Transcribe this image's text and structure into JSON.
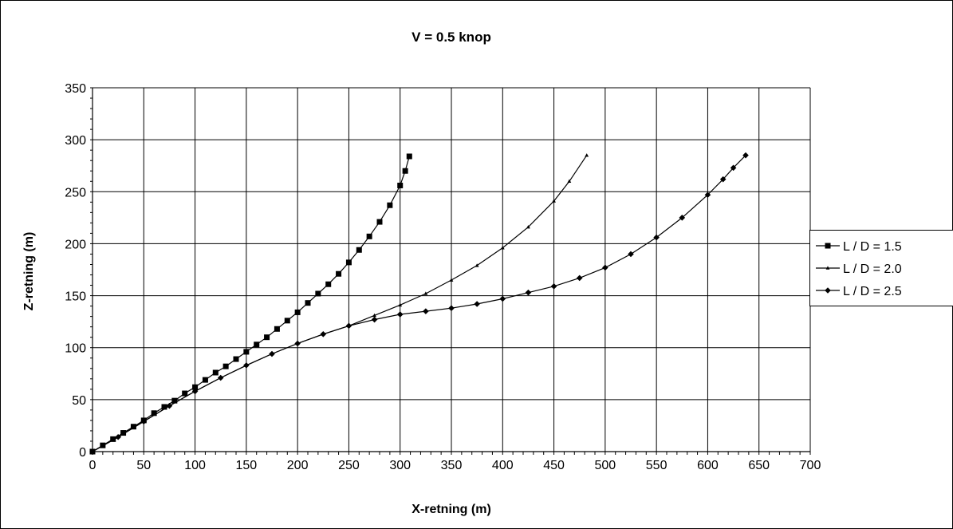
{
  "chart_data": {
    "type": "line",
    "title": "V = 0.5 knop",
    "xlabel": "X-retning (m)",
    "ylabel": "Z-retning (m)",
    "xlim": [
      0,
      700
    ],
    "ylim": [
      0,
      350
    ],
    "x_ticks": [
      0,
      50,
      100,
      150,
      200,
      250,
      300,
      350,
      400,
      450,
      500,
      550,
      600,
      650,
      700
    ],
    "y_ticks": [
      0,
      50,
      100,
      150,
      200,
      250,
      300,
      350
    ],
    "grid": true,
    "legend_position": "right",
    "series": [
      {
        "name": "L / D = 1.5",
        "marker": "square",
        "x": [
          0,
          10,
          20,
          30,
          40,
          50,
          60,
          70,
          80,
          90,
          100,
          110,
          120,
          130,
          140,
          150,
          160,
          170,
          180,
          190,
          200,
          210,
          220,
          230,
          240,
          250,
          260,
          270,
          280,
          290,
          300,
          305,
          309
        ],
        "y": [
          0,
          6,
          12,
          18,
          24,
          30,
          37,
          43,
          49,
          56,
          62,
          69,
          76,
          82,
          89,
          96,
          103,
          110,
          118,
          126,
          134,
          143,
          152,
          161,
          171,
          182,
          194,
          207,
          221,
          237,
          256,
          270,
          284
        ]
      },
      {
        "name": "L / D = 2.0",
        "marker": "triangle",
        "x": [
          0,
          25,
          50,
          75,
          100,
          125,
          150,
          175,
          200,
          225,
          250,
          275,
          300,
          325,
          350,
          375,
          400,
          425,
          450,
          465,
          482
        ],
        "y": [
          0,
          14,
          29,
          44,
          58,
          71,
          83,
          94,
          104,
          113,
          121,
          131,
          141,
          152,
          165,
          179,
          196,
          216,
          241,
          260,
          285
        ]
      },
      {
        "name": "L / D = 2.5",
        "marker": "diamond",
        "x": [
          0,
          25,
          50,
          75,
          100,
          125,
          150,
          175,
          200,
          225,
          250,
          275,
          300,
          325,
          350,
          375,
          400,
          425,
          450,
          475,
          500,
          525,
          550,
          575,
          600,
          615,
          625,
          637
        ],
        "y": [
          0,
          14,
          29,
          44,
          58,
          71,
          83,
          94,
          104,
          113,
          121,
          127,
          132,
          135,
          138,
          142,
          147,
          153,
          159,
          167,
          177,
          190,
          206,
          225,
          247,
          262,
          273,
          285
        ]
      }
    ]
  }
}
